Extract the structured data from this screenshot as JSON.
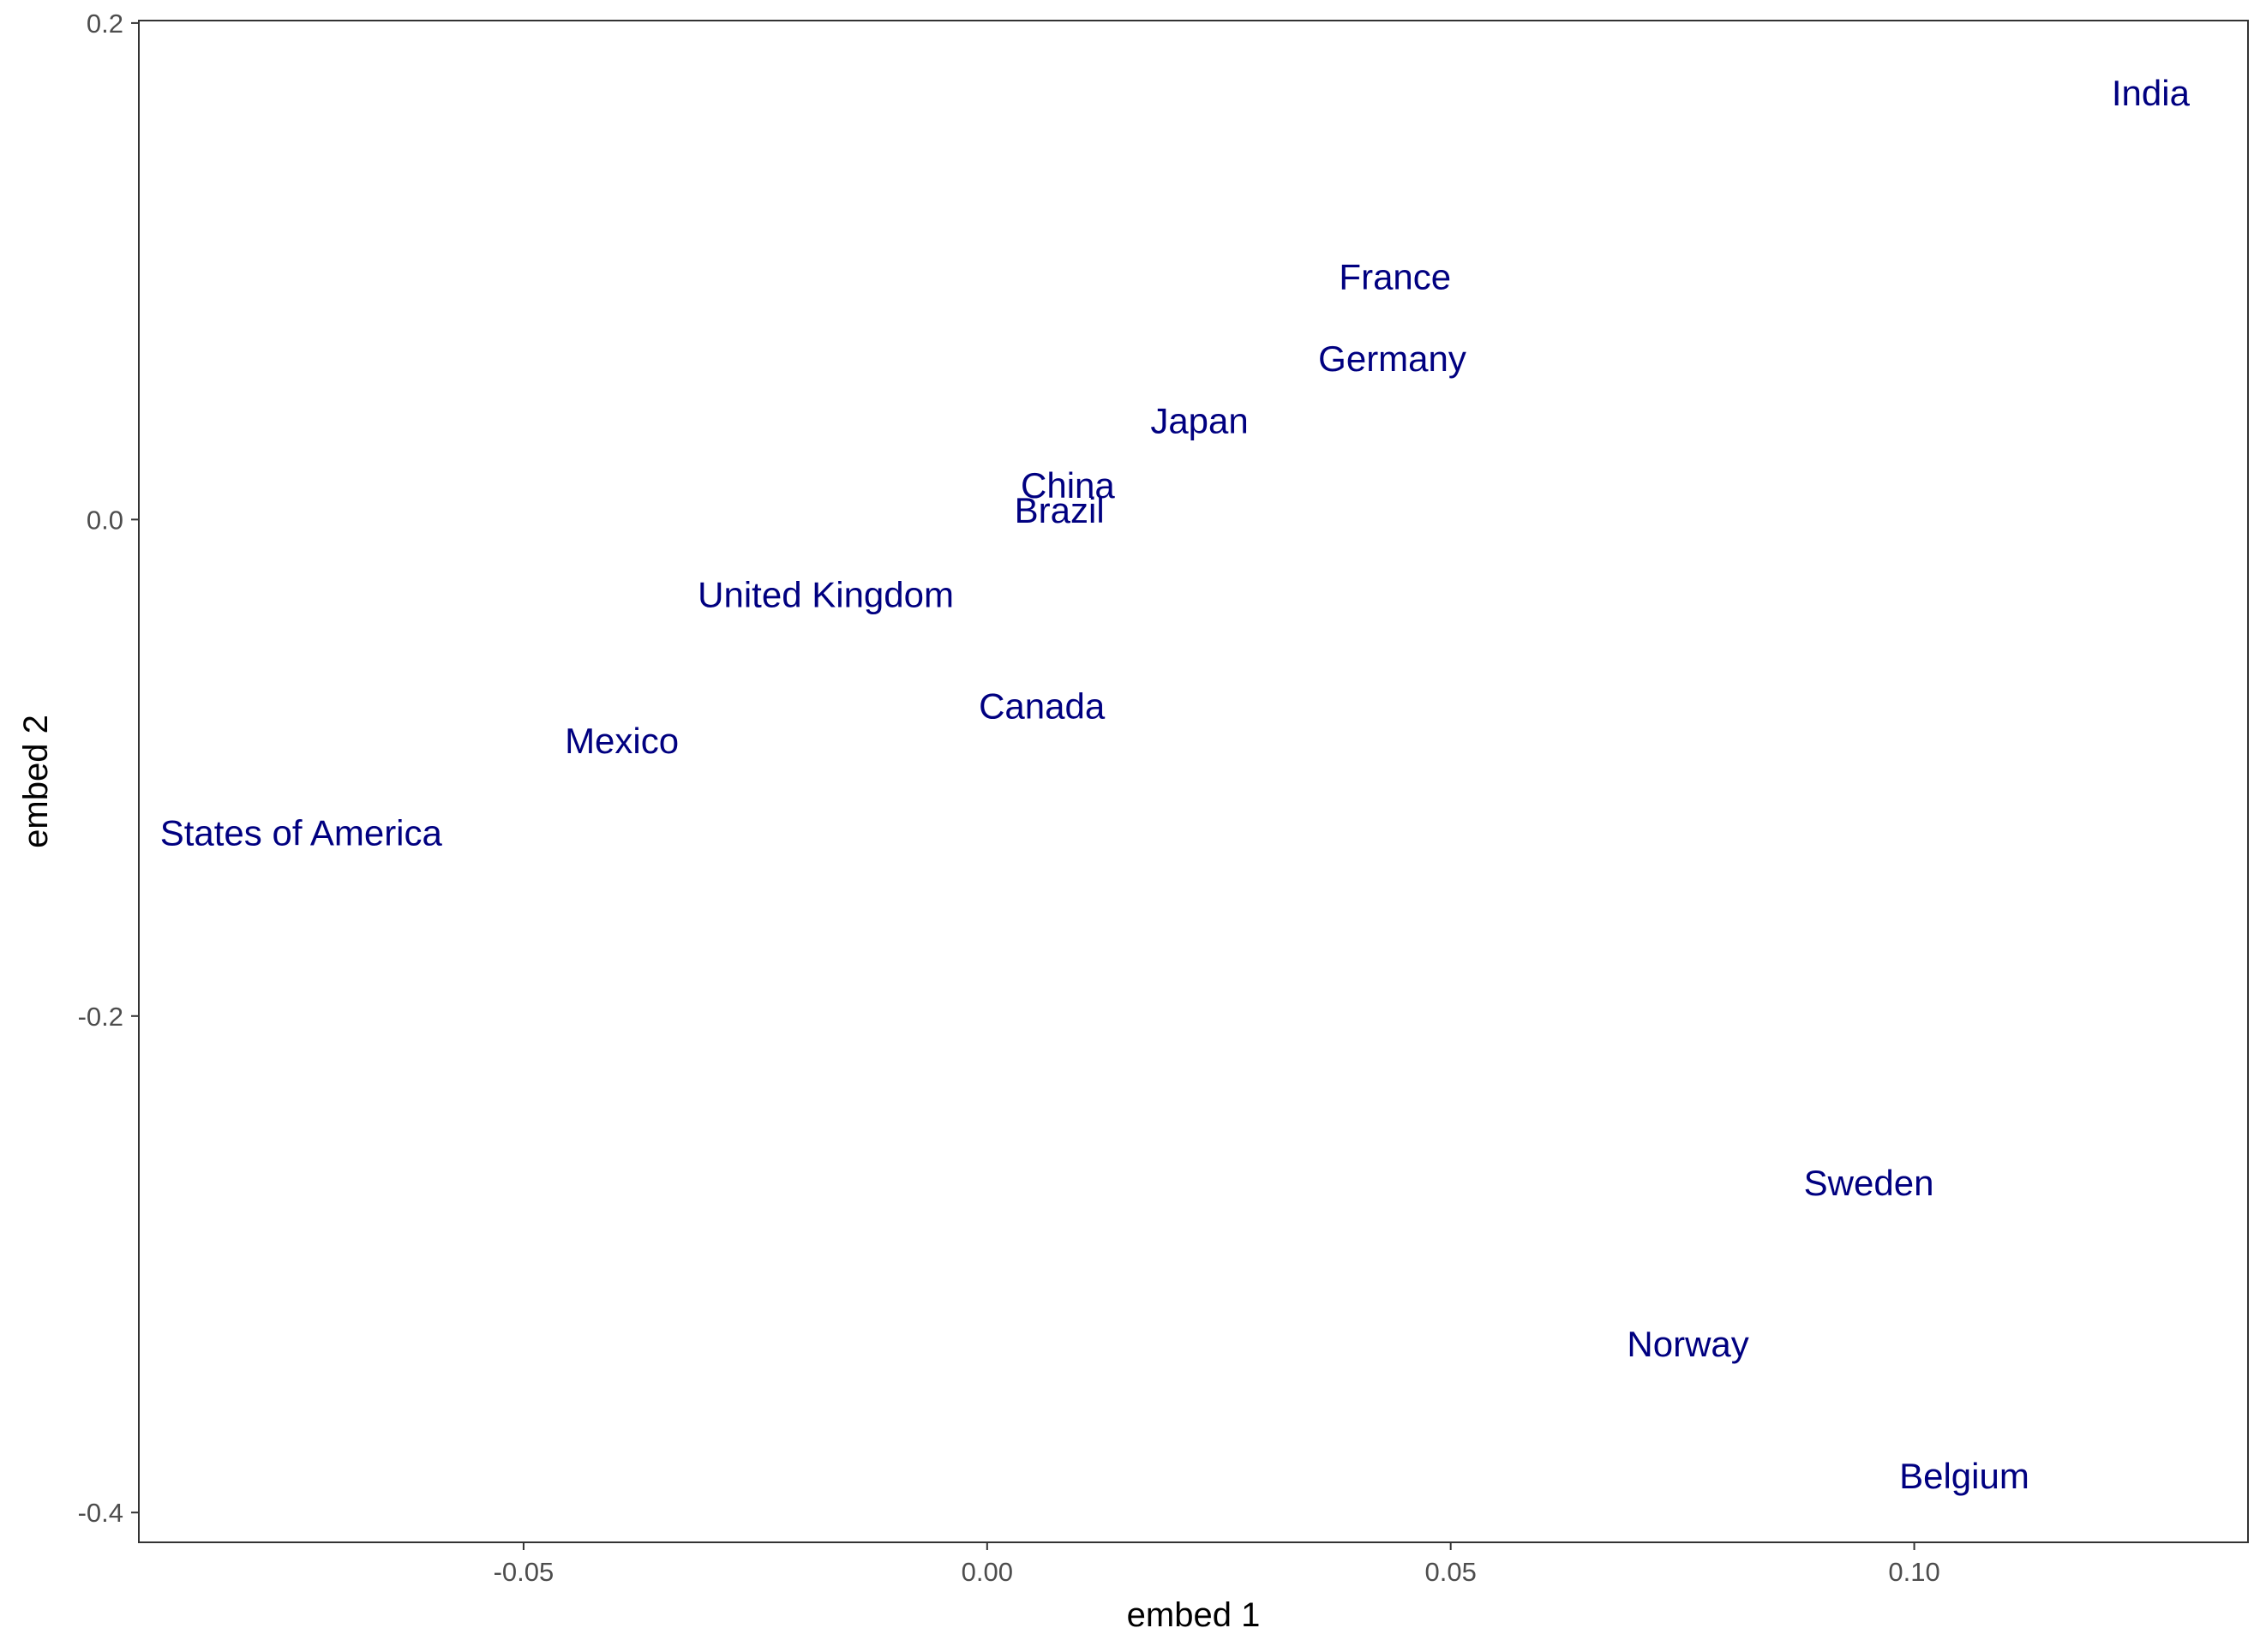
{
  "chart_data": {
    "type": "scatter",
    "mark": "text-label",
    "xlabel": "embed 1",
    "ylabel": "embed 2",
    "xlim": [
      -0.0915,
      0.136
    ],
    "ylim": [
      -0.412,
      0.201
    ],
    "x_ticks": [
      {
        "value": -0.05,
        "label": "-0.05"
      },
      {
        "value": 0.0,
        "label": "0.00"
      },
      {
        "value": 0.05,
        "label": "0.05"
      },
      {
        "value": 0.1,
        "label": "0.10"
      }
    ],
    "y_ticks": [
      {
        "value": 0.2,
        "label": "0.2"
      },
      {
        "value": 0.0,
        "label": "0.0"
      },
      {
        "value": -0.2,
        "label": "-0.2"
      },
      {
        "value": -0.4,
        "label": "-0.4"
      }
    ],
    "grid": false,
    "label_color": "#000080",
    "points": [
      {
        "label": "India",
        "x": 0.1255,
        "y": 0.172
      },
      {
        "label": "France",
        "x": 0.044,
        "y": 0.098
      },
      {
        "label": "Germany",
        "x": 0.0437,
        "y": 0.065
      },
      {
        "label": "Japan",
        "x": 0.0229,
        "y": 0.04
      },
      {
        "label": "China",
        "x": 0.0087,
        "y": 0.014
      },
      {
        "label": "Brazil",
        "x": 0.0078,
        "y": 0.004
      },
      {
        "label": "United Kingdom",
        "x": -0.0174,
        "y": -0.03
      },
      {
        "label": "Canada",
        "x": 0.0059,
        "y": -0.075
      },
      {
        "label": "Mexico",
        "x": -0.0394,
        "y": -0.089
      },
      {
        "label": "States of America",
        "x": -0.074,
        "y": -0.126
      },
      {
        "label": "Sweden",
        "x": 0.0951,
        "y": -0.267
      },
      {
        "label": "Norway",
        "x": 0.0756,
        "y": -0.332
      },
      {
        "label": "Belgium",
        "x": 0.1054,
        "y": -0.385
      }
    ]
  }
}
